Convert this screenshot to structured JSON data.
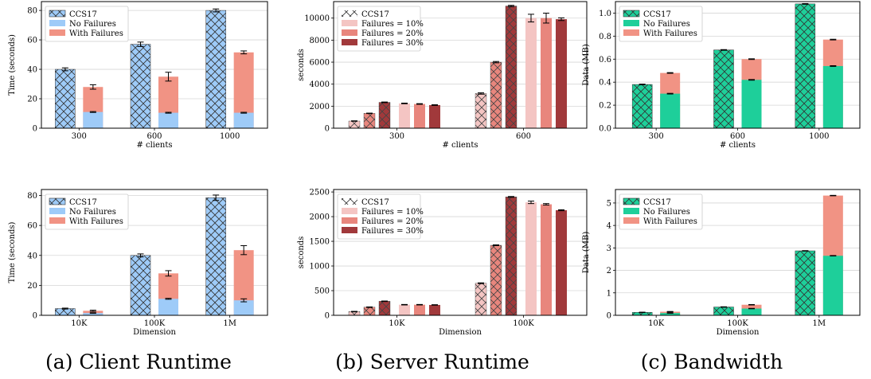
{
  "captions": [
    "(a) Client Runtime",
    "(b) Server Runtime",
    "(c) Bandwidth"
  ],
  "colors": {
    "client_ccs": "#9ecbf8",
    "client_nofail": "#9ecbf8",
    "client_fail": "#f19384",
    "server_ccs": [
      "#f4c5c3",
      "#e8867d",
      "#a1393b"
    ],
    "server_fail": [
      "#f4c5c3",
      "#e8867d",
      "#a1393b"
    ],
    "bw_ccs": "#1ecf9a",
    "bw_nofail": "#1ecf9a",
    "bw_fail": "#f19384",
    "grid": "#d6d6d6",
    "error": "#000000"
  },
  "chart_data": [
    {
      "id": "a1",
      "type": "bar",
      "kind": "stacked3",
      "categories": [
        "300",
        "600",
        "1000"
      ],
      "xlabel": "# clients",
      "ylabel": "Time (seconds)",
      "ylim": [
        0,
        86
      ],
      "yticks": [
        0,
        20,
        40,
        60,
        80
      ],
      "legend": [
        "CCS17",
        "No Failures",
        "With Failures"
      ],
      "legend_position": "top-left",
      "series": [
        {
          "name": "CCS17",
          "values": [
            40,
            57,
            80
          ],
          "err": [
            1.0,
            1.5,
            1.0
          ]
        },
        {
          "name": "No Failures",
          "values": [
            11,
            10.5,
            10.5
          ],
          "err": [
            0.3,
            0.3,
            0.3
          ]
        },
        {
          "name": "With Failures",
          "values": [
            28,
            35,
            51.5
          ],
          "err": [
            1.5,
            3.0,
            1.0
          ]
        }
      ]
    },
    {
      "id": "b1",
      "type": "bar",
      "kind": "server",
      "categories": [
        "300",
        "600"
      ],
      "xlabel": "# clients",
      "ylabel": "seconds",
      "ylim": [
        0,
        11500
      ],
      "yticks": [
        0,
        2000,
        4000,
        6000,
        8000,
        10000
      ],
      "legend": [
        "CCS17",
        "Failures = 10%",
        "Failures = 20%",
        "Failures = 30%"
      ],
      "legend_position": "top-left",
      "series": [
        {
          "name": "CCS17",
          "values": [
            [
              650,
              1350,
              2350
            ],
            [
              3150,
              6000,
              11100
            ]
          ],
          "err": [
            [
              20,
              20,
              30
            ],
            [
              60,
              60,
              60
            ]
          ]
        },
        {
          "name": "Failures",
          "values": [
            [
              2250,
              2200,
              2100
            ],
            [
              10000,
              10000,
              9900
            ]
          ],
          "err": [
            [
              30,
              30,
              30
            ],
            [
              350,
              450,
              120
            ]
          ]
        }
      ]
    },
    {
      "id": "c1",
      "type": "bar",
      "kind": "stacked3",
      "categories": [
        "300",
        "600",
        "1000"
      ],
      "xlabel": "# clients",
      "ylabel": "Data (MB)",
      "ylim": [
        0,
        1.1
      ],
      "yticks": [
        0.0,
        0.2,
        0.4,
        0.6,
        0.8,
        1.0
      ],
      "legend": [
        "CCS17",
        "No Failures",
        "With Failures"
      ],
      "legend_position": "top-left",
      "series": [
        {
          "name": "CCS17",
          "values": [
            0.38,
            0.68,
            1.08
          ],
          "err": [
            0.003,
            0.003,
            0.003
          ]
        },
        {
          "name": "No Failures",
          "values": [
            0.3,
            0.42,
            0.54
          ],
          "err": [
            0.003,
            0.003,
            0.003
          ]
        },
        {
          "name": "With Failures",
          "values": [
            0.48,
            0.6,
            0.77
          ],
          "err": [
            0.003,
            0.003,
            0.003
          ]
        }
      ]
    },
    {
      "id": "a2",
      "type": "bar",
      "kind": "stacked3",
      "categories": [
        "10K",
        "100K",
        "1M"
      ],
      "xlabel": "Dimension",
      "ylabel": "Time (seconds)",
      "ylim": [
        0,
        84
      ],
      "yticks": [
        0,
        20,
        40,
        60,
        80
      ],
      "legend": [
        "CCS17",
        "No Failures",
        "With Failures"
      ],
      "legend_position": "top-left",
      "series": [
        {
          "name": "CCS17",
          "values": [
            4.5,
            40,
            78.5
          ],
          "err": [
            0.3,
            1.0,
            1.8
          ]
        },
        {
          "name": "No Failures",
          "values": [
            1.5,
            11,
            10
          ],
          "err": [
            0.2,
            0.3,
            1.0
          ]
        },
        {
          "name": "With Failures",
          "values": [
            3,
            28,
            43.5
          ],
          "err": [
            0.4,
            1.8,
            3.0
          ]
        }
      ]
    },
    {
      "id": "b2",
      "type": "bar",
      "kind": "server",
      "categories": [
        "10K",
        "100K"
      ],
      "xlabel": "Dimension",
      "ylabel": "seconds",
      "ylim": [
        0,
        2550
      ],
      "yticks": [
        0,
        500,
        1000,
        1500,
        2000,
        2500
      ],
      "legend": [
        "CCS17",
        "Failures = 10%",
        "Failures = 20%",
        "Failures = 30%"
      ],
      "legend_position": "top-left",
      "series": [
        {
          "name": "CCS17",
          "values": [
            [
              75,
              165,
              285
            ],
            [
              650,
              1420,
              2400
            ]
          ],
          "err": [
            [
              5,
              5,
              5
            ],
            [
              8,
              8,
              8
            ]
          ]
        },
        {
          "name": "Failures",
          "values": [
            [
              215,
              215,
              210
            ],
            [
              2290,
              2250,
              2130
            ]
          ],
          "err": [
            [
              5,
              5,
              5
            ],
            [
              25,
              15,
              10
            ]
          ]
        }
      ]
    },
    {
      "id": "c2",
      "type": "bar",
      "kind": "stacked3",
      "categories": [
        "10K",
        "100K",
        "1M"
      ],
      "xlabel": "Dimension",
      "ylabel": "Data (MB)",
      "ylim": [
        0,
        5.6
      ],
      "yticks": [
        0,
        1,
        2,
        3,
        4,
        5
      ],
      "legend": [
        "CCS17",
        "No Failures",
        "With Failures"
      ],
      "legend_position": "top-left",
      "series": [
        {
          "name": "CCS17",
          "values": [
            0.13,
            0.37,
            2.87
          ],
          "err": [
            0.01,
            0.01,
            0.01
          ]
        },
        {
          "name": "No Failures",
          "values": [
            0.1,
            0.3,
            2.65
          ],
          "err": [
            0.01,
            0.01,
            0.01
          ]
        },
        {
          "name": "With Failures",
          "values": [
            0.16,
            0.47,
            5.33
          ],
          "err": [
            0.01,
            0.01,
            0.01
          ]
        }
      ]
    }
  ]
}
